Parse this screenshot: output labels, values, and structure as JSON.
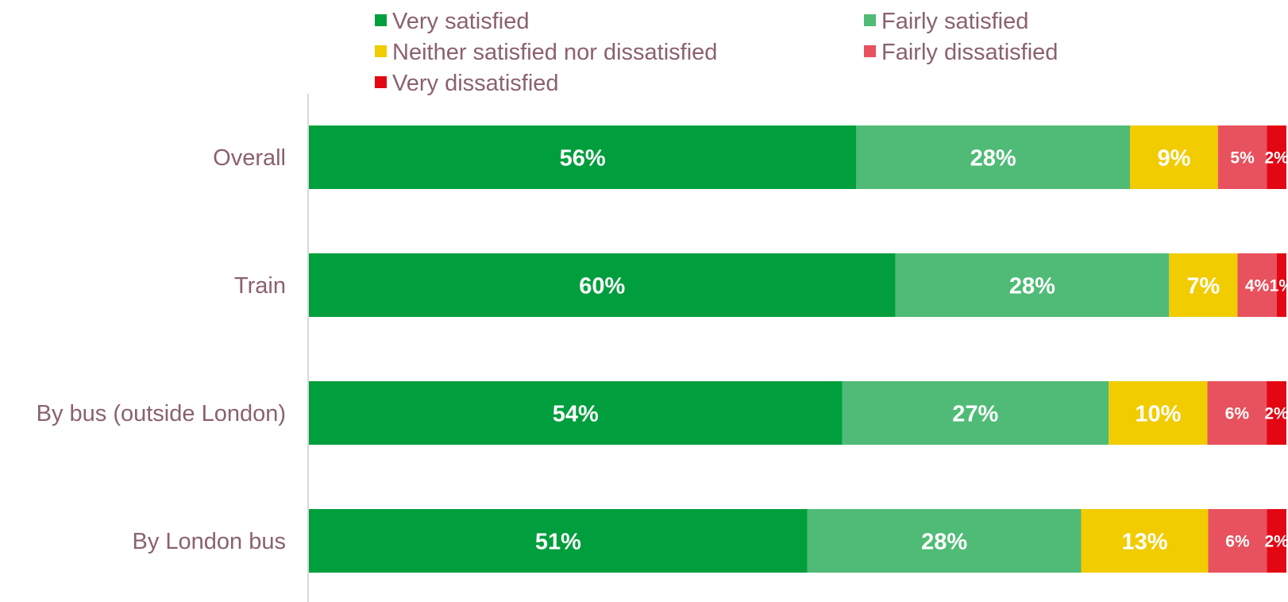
{
  "chart_data": {
    "type": "bar",
    "orientation": "horizontal",
    "stacked": true,
    "categories": [
      "Overall",
      "Train",
      "By bus (outside London)",
      "By London bus"
    ],
    "series": [
      {
        "name": "Very satisfied",
        "color": "#009e3d",
        "values": [
          56,
          60,
          54,
          51
        ],
        "labels": [
          "56%",
          "60%",
          "54%",
          "51%"
        ]
      },
      {
        "name": "Fairly satisfied",
        "color": "#4fbb76",
        "values": [
          28,
          28,
          27,
          28
        ],
        "labels": [
          "28%",
          "28%",
          "27%",
          "28%"
        ]
      },
      {
        "name": "Neither satisfied nor dissatisfied",
        "color": "#f0cc00",
        "values": [
          9,
          7,
          10,
          13
        ],
        "labels": [
          "9%",
          "7%",
          "10%",
          "13%"
        ]
      },
      {
        "name": "Fairly dissatisfied",
        "color": "#e8515e",
        "values": [
          5,
          4,
          6,
          6
        ],
        "labels": [
          "5%",
          "4%",
          "6%",
          "6%"
        ]
      },
      {
        "name": "Very dissatisfied",
        "color": "#e30613",
        "values": [
          2,
          1,
          2,
          2
        ],
        "labels": [
          "2%",
          "1%",
          "2%",
          "2%"
        ]
      }
    ],
    "xlim": [
      0,
      100
    ],
    "legend_position": "top",
    "grid": false,
    "title": "",
    "xlabel": "",
    "ylabel": ""
  }
}
